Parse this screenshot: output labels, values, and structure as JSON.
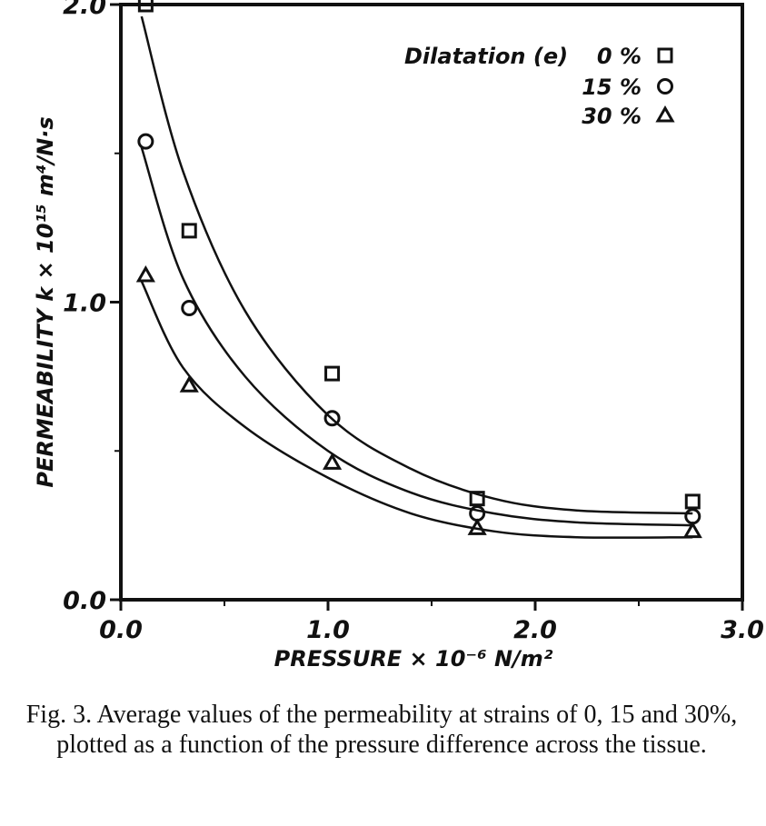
{
  "chart_data": {
    "type": "scatter",
    "title": "",
    "xlabel": "PRESSURE × 10⁻⁶ N/m²",
    "ylabel": "PERMEABILITY  k × 10¹⁵ m⁴/N·s",
    "xlim": [
      0.0,
      3.0
    ],
    "ylim": [
      0.0,
      2.0
    ],
    "xticks": [
      "0.0",
      "1.0",
      "2.0",
      "3.0"
    ],
    "yticks": [
      "0.0",
      "1.0",
      "2.0"
    ],
    "grid": false,
    "legend_title": "Dilatation (e)",
    "legend_position": "top-right",
    "x": [
      0.12,
      0.33,
      1.02,
      1.72,
      2.76
    ],
    "series": [
      {
        "name": "0 %",
        "marker": "square",
        "values": [
          2.0,
          1.24,
          0.76,
          0.34,
          0.33
        ],
        "curve": {
          "x": [
            0.1,
            0.3,
            0.6,
            1.0,
            1.4,
            1.8,
            2.2,
            2.76
          ],
          "y": [
            1.96,
            1.44,
            0.97,
            0.62,
            0.44,
            0.34,
            0.3,
            0.29
          ]
        }
      },
      {
        "name": "15 %",
        "marker": "circle",
        "values": [
          1.54,
          0.98,
          0.61,
          0.29,
          0.28
        ],
        "curve": {
          "x": [
            0.1,
            0.3,
            0.6,
            1.0,
            1.4,
            1.8,
            2.2,
            2.76
          ],
          "y": [
            1.52,
            1.08,
            0.75,
            0.5,
            0.36,
            0.29,
            0.26,
            0.25
          ]
        }
      },
      {
        "name": "30 %",
        "marker": "triangle",
        "values": [
          1.09,
          0.72,
          0.46,
          0.24,
          0.23
        ],
        "curve": {
          "x": [
            0.1,
            0.3,
            0.6,
            1.0,
            1.4,
            1.8,
            2.2,
            2.76
          ],
          "y": [
            1.07,
            0.78,
            0.58,
            0.41,
            0.29,
            0.23,
            0.21,
            0.21
          ]
        }
      }
    ]
  },
  "caption": "Fig. 3. Average values of the permeability at strains of 0, 15 and 30%, plotted as a function of the pressure difference across the tissue."
}
